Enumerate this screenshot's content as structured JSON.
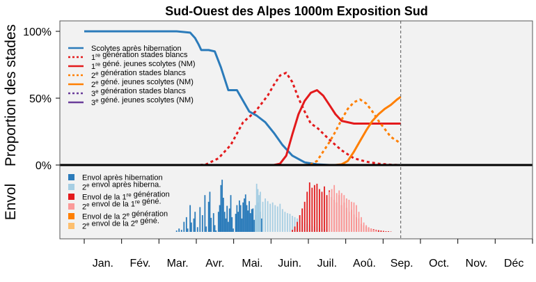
{
  "chart_data": {
    "type": "line",
    "title": "Sud-Ouest des Alpes 1000m Exposition Sud",
    "ylabel_top": "Proportion des stades",
    "ylabel_bottom": "Envol",
    "y_ticks": [
      "0%",
      "50%",
      "100%"
    ],
    "x_axis": {
      "type": "day-of-year",
      "range": [
        1,
        365
      ],
      "month_labels": [
        "Jan.",
        "Fév.",
        "Mar.",
        "Avr.",
        "Mai.",
        "Juin.",
        "Juil.",
        "Aoû.",
        "Sep.",
        "Oct.",
        "Nov.",
        "Déc"
      ]
    },
    "ylim": [
      0,
      1
    ],
    "current_date_line": 258,
    "background": "#f2f2f2",
    "lines": [
      {
        "name": "Scolytes après hibernation",
        "sup": "",
        "name_rest": "",
        "color": "#2b7bba",
        "style": "solid",
        "x": [
          1,
          46,
          76,
          87,
          91,
          94,
          96,
          102,
          107,
          112,
          118,
          125,
          130,
          135,
          141,
          148,
          155,
          162,
          170,
          180,
          190,
          200,
          210,
          225,
          245,
          258
        ],
        "y": [
          1,
          1,
          1,
          0.99,
          0.95,
          0.9,
          0.86,
          0.86,
          0.85,
          0.73,
          0.56,
          0.56,
          0.48,
          0.4,
          0.37,
          0.32,
          0.24,
          0.15,
          0.07,
          0.02,
          0.005,
          0,
          0,
          0,
          0,
          0
        ]
      },
      {
        "name": "1",
        "sup": "re",
        "name_rest": " génération stades blancs",
        "color": "#e31a1c",
        "style": "dotted",
        "x": [
          95,
          100,
          110,
          120,
          130,
          140,
          150,
          155,
          160,
          165,
          170,
          175,
          180,
          185,
          190,
          200,
          210,
          220,
          230,
          240,
          250,
          258
        ],
        "y": [
          0,
          0.005,
          0.05,
          0.15,
          0.32,
          0.4,
          0.52,
          0.6,
          0.67,
          0.69,
          0.62,
          0.5,
          0.4,
          0.31,
          0.28,
          0.19,
          0.11,
          0.05,
          0.025,
          0.01,
          0.002,
          0
        ]
      },
      {
        "name": "1",
        "sup": "re",
        "name_rest": " géné. jeunes scolytes (NM)",
        "color": "#e31a1c",
        "style": "solid",
        "x": [
          155,
          160,
          165,
          170,
          175,
          180,
          185,
          190,
          195,
          200,
          205,
          210,
          220,
          230,
          240,
          250,
          258
        ],
        "y": [
          0,
          0.01,
          0.07,
          0.23,
          0.38,
          0.48,
          0.54,
          0.56,
          0.52,
          0.45,
          0.38,
          0.33,
          0.31,
          0.31,
          0.31,
          0.31,
          0.31
        ]
      },
      {
        "name": "2",
        "sup": "e",
        "name_rest": " génération stades blancs",
        "color": "#ff7f00",
        "style": "dotted",
        "x": [
          180,
          185,
          190,
          195,
          200,
          205,
          210,
          215,
          220,
          225,
          230,
          235,
          240,
          245,
          250,
          255,
          258
        ],
        "y": [
          0,
          0.005,
          0.03,
          0.1,
          0.17,
          0.25,
          0.34,
          0.42,
          0.47,
          0.49,
          0.46,
          0.4,
          0.33,
          0.27,
          0.21,
          0.18,
          0.16
        ]
      },
      {
        "name": "2",
        "sup": "e",
        "name_rest": " géné. jeunes scolytes (NM)",
        "color": "#ff7f00",
        "style": "solid",
        "x": [
          205,
          210,
          215,
          220,
          225,
          230,
          235,
          240,
          245,
          250,
          255,
          258
        ],
        "y": [
          0,
          0.005,
          0.03,
          0.1,
          0.18,
          0.26,
          0.33,
          0.38,
          0.42,
          0.45,
          0.49,
          0.51
        ]
      },
      {
        "name": "3",
        "sup": "e",
        "name_rest": " génération stades blancs",
        "color": "#6a3d9a",
        "style": "dotted",
        "x": [],
        "y": []
      },
      {
        "name": "3",
        "sup": "e",
        "name_rest": " géné. jeunes scolytes (NM)",
        "color": "#6a3d9a",
        "style": "solid",
        "x": [],
        "y": []
      }
    ],
    "envol_legend": [
      {
        "name": "Envol après hibernation",
        "sup": "",
        "name_rest": "",
        "color": "#2b7bba"
      },
      {
        "name": "2",
        "sup": "e",
        "name_rest": " envol après hiberna.",
        "color": "#a6cee3"
      },
      {
        "name": "Envol de la 1",
        "sup": "re",
        "name_rest": " génération",
        "color": "#e31a1c"
      },
      {
        "name": "2",
        "sup": "e",
        "name_rest": " envol de la 1",
        "sup2": "re",
        "name_rest2": " géné.",
        "color": "#fb9a99"
      },
      {
        "name": "Envol de la 2",
        "sup": "e",
        "name_rest": " génération",
        "color": "#ff7f00"
      },
      {
        "name": "2",
        "sup": "e",
        "name_rest": " envol de la 2",
        "sup2": "e",
        "name_rest2": " géné.",
        "color": "#fdbf6f"
      }
    ],
    "envol_series": [
      {
        "name": "Envol après hibernation",
        "color": "#2b7bba",
        "x": [
          76,
          78,
          80,
          82,
          84,
          85,
          87,
          88,
          90,
          91,
          93,
          95,
          97,
          99,
          100,
          102,
          103,
          104,
          106,
          107,
          108,
          110,
          111,
          112,
          113,
          114,
          115,
          116,
          117,
          118,
          119,
          120,
          121,
          122,
          124,
          125,
          126,
          127,
          128,
          129,
          130,
          131,
          132,
          133,
          134,
          135,
          136,
          137,
          138,
          139,
          140,
          141,
          142,
          143,
          144,
          145
        ],
        "y": [
          0.02,
          0.05,
          0.03,
          0.15,
          0.22,
          0.05,
          0.4,
          0.14,
          0.2,
          0.3,
          0.07,
          0.37,
          0.25,
          0.55,
          0.08,
          0.45,
          0.6,
          0.21,
          0.28,
          0.1,
          0.02,
          0.3,
          0.4,
          0.7,
          0.78,
          0.51,
          0.3,
          0.2,
          0.39,
          0.15,
          0.35,
          0.55,
          0.22,
          0.05,
          0.27,
          0.4,
          0.3,
          0.47,
          0.4,
          0.2,
          0.44,
          0.5,
          0.56,
          0.4,
          0.32,
          0.46,
          0.28,
          0.34,
          0.35,
          0.18,
          0.25,
          0.33,
          0.44,
          0.25,
          0.3,
          0.2
        ]
      },
      {
        "name": "2e envol après hiberna.",
        "color": "#a6cee3",
        "x": [
          140,
          141,
          142,
          143,
          144,
          146,
          148,
          150,
          152,
          154,
          156,
          158,
          160,
          162,
          164,
          166,
          168,
          170,
          172,
          174,
          176,
          178,
          180,
          182,
          184,
          186,
          188,
          190,
          192,
          194,
          196,
          198,
          200,
          202,
          204
        ],
        "y": [
          0.4,
          0.72,
          0.64,
          0.55,
          0.6,
          0.45,
          0.5,
          0.46,
          0.42,
          0.44,
          0.4,
          0.38,
          0.42,
          0.34,
          0.3,
          0.28,
          0.27,
          0.24,
          0.22,
          0.2,
          0.18,
          0.16,
          0.14,
          0.12,
          0.1,
          0.09,
          0.08,
          0.07,
          0.06,
          0.05,
          0.04,
          0.03,
          0.025,
          0.015,
          0.01
        ]
      },
      {
        "name": "Envol de la 1re génération",
        "color": "#e31a1c",
        "x": [
          170,
          172,
          174,
          176,
          178,
          180,
          182,
          184,
          186,
          188,
          190,
          192,
          194,
          196,
          198,
          200,
          202,
          204,
          206,
          208,
          210,
          212,
          214,
          216,
          218,
          220,
          222,
          224,
          226,
          228,
          230,
          232,
          234,
          236,
          238,
          240,
          242,
          244,
          246,
          248,
          250
        ],
        "y": [
          0.03,
          0.08,
          0.15,
          0.25,
          0.35,
          0.45,
          0.6,
          0.74,
          0.66,
          0.7,
          0.72,
          0.64,
          0.6,
          0.68,
          0.55,
          0.62,
          0.52,
          0.48,
          0.44,
          0.55,
          0.4,
          0.44,
          0.36,
          0.3,
          0.33,
          0.26,
          0.22,
          0.2,
          0.12,
          0.1,
          0.08,
          0.06,
          0.05,
          0.04,
          0.03,
          0.025,
          0.02,
          0.015,
          0.01,
          0.01,
          0.005
        ]
      },
      {
        "name": "2e envol de la 1re géné.",
        "color": "#fb9a99",
        "x": [
          200,
          202,
          204,
          206,
          208,
          210,
          212,
          214,
          216,
          218,
          220,
          222,
          224,
          226,
          228,
          230,
          232,
          234,
          236,
          238
        ],
        "y": [
          0.6,
          0.64,
          0.7,
          0.58,
          0.62,
          0.58,
          0.55,
          0.5,
          0.48,
          0.45,
          0.44,
          0.4,
          0.3,
          0.22,
          0.14,
          0.1,
          0.07,
          0.05,
          0.03,
          0.02
        ]
      }
    ]
  }
}
